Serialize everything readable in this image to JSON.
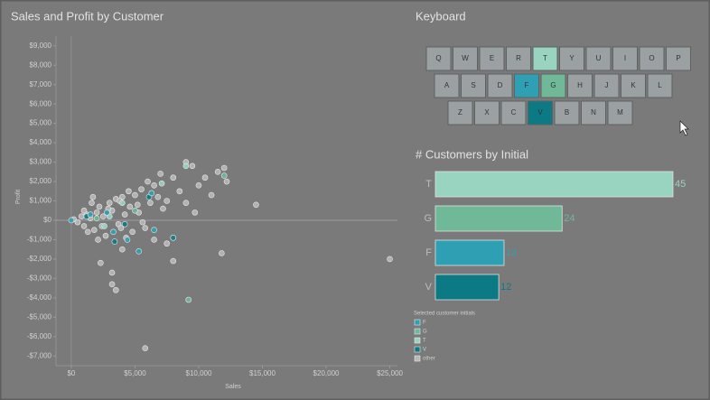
{
  "chart_data": [
    {
      "type": "scatter",
      "title": "Sales and Profit by Customer",
      "x_label": "Sales",
      "y_label": "Profit",
      "legend_title": "Selected customer initials",
      "xlim": [
        -1200,
        25600
      ],
      "ylim": [
        -7500,
        9500
      ],
      "xticks": [
        {
          "value": 0,
          "label": "$0"
        },
        {
          "value": 5000,
          "label": "$5,000"
        },
        {
          "value": 10000,
          "label": "$10,000"
        },
        {
          "value": 15000,
          "label": "$15,000"
        },
        {
          "value": 20000,
          "label": "$20,000"
        },
        {
          "value": 25000,
          "label": "$25,000"
        }
      ],
      "yticks": [
        {
          "value": 9000,
          "label": "$9,000"
        },
        {
          "value": 8000,
          "label": "$8,000"
        },
        {
          "value": 7000,
          "label": "$7,000"
        },
        {
          "value": 6000,
          "label": "$6,000"
        },
        {
          "value": 5000,
          "label": "$5,000"
        },
        {
          "value": 4000,
          "label": "$4,000"
        },
        {
          "value": 3000,
          "label": "$3,000"
        },
        {
          "value": 2000,
          "label": "$2,000"
        },
        {
          "value": 1000,
          "label": "$1,000"
        },
        {
          "value": 0,
          "label": "$0"
        },
        {
          "value": -1000,
          "label": "-$1,000"
        },
        {
          "value": -2000,
          "label": "-$2,000"
        },
        {
          "value": -3000,
          "label": "-$3,000"
        },
        {
          "value": -4000,
          "label": "-$4,000"
        },
        {
          "value": -5000,
          "label": "-$5,000"
        },
        {
          "value": -6000,
          "label": "-$6,000"
        },
        {
          "value": -7000,
          "label": "-$7,000"
        }
      ],
      "series": [
        {
          "name": "F",
          "color": "#2fa0b4",
          "x": [
            0,
            1500,
            2800,
            4400,
            5300,
            6500,
            3300,
            6300
          ],
          "values": [
            0,
            300,
            400,
            -1000,
            -1600,
            -500,
            -600,
            1400
          ]
        },
        {
          "name": "G",
          "color": "#6fb898",
          "x": [
            9200,
            12000,
            2000,
            5000
          ],
          "values": [
            -4100,
            2300,
            100,
            500
          ]
        },
        {
          "name": "T",
          "color": "#98d4c0",
          "x": [
            9000,
            4000,
            2600,
            7100,
            3000
          ],
          "values": [
            2800,
            900,
            -300,
            1900,
            200
          ]
        },
        {
          "name": "V",
          "color": "#0b7a85",
          "x": [
            6100,
            8000,
            1200,
            4200,
            3400
          ],
          "values": [
            1200,
            -900,
            200,
            -200,
            -1100
          ]
        },
        {
          "name": "other",
          "color": "#b8b8b8",
          "x": [
            200,
            500,
            800,
            1000,
            1200,
            1500,
            1800,
            2000,
            2200,
            2500,
            2700,
            3000,
            3200,
            3500,
            3700,
            4000,
            4200,
            4500,
            4800,
            5000,
            5200,
            5500,
            5800,
            6000,
            6500,
            7000,
            7500,
            8000,
            8500,
            9000,
            9500,
            10000,
            10500,
            11000,
            11500,
            12000,
            12200,
            8000,
            7500,
            8000,
            6500,
            3200,
            3500,
            2300,
            3200,
            5800,
            11800,
            14500,
            25000,
            9700,
            1300,
            1600,
            2400,
            2900,
            4300,
            5300,
            6200,
            6800,
            7200,
            9000,
            1000,
            1700,
            3800,
            4600,
            5600,
            2100,
            4000,
            3900
          ],
          "values": [
            50,
            -100,
            200,
            -300,
            300,
            100,
            -500,
            400,
            700,
            200,
            -800,
            900,
            500,
            1100,
            -200,
            1200,
            300,
            1500,
            -600,
            1300,
            800,
            1600,
            -400,
            2000,
            1800,
            2400,
            1000,
            2200,
            1500,
            900,
            2800,
            1800,
            2200,
            1300,
            2500,
            2700,
            2000,
            -900,
            -1200,
            -2100,
            -1000,
            -2700,
            -3600,
            -2200,
            -3300,
            -6600,
            -1700,
            800,
            -2000,
            400,
            -600,
            900,
            -300,
            600,
            -900,
            400,
            900,
            1200,
            600,
            3000,
            500,
            1200,
            1000,
            700,
            -100,
            -1000,
            -1500,
            -400
          ]
        }
      ]
    },
    {
      "type": "hbar",
      "title": "# Customers by Initial",
      "categories": [
        "T",
        "G",
        "F",
        "V"
      ],
      "values": [
        45,
        24,
        13,
        12
      ],
      "colors": [
        "#98d4c0",
        "#6fb898",
        "#2fa0b4",
        "#0b7a85"
      ],
      "xlim": [
        0,
        45
      ]
    }
  ],
  "keyboard": {
    "title": "Keyboard",
    "rows": [
      [
        "Q",
        "W",
        "E",
        "R",
        "T",
        "Y",
        "U",
        "I",
        "O",
        "P"
      ],
      [
        "A",
        "S",
        "D",
        "F",
        "G",
        "H",
        "J",
        "K",
        "L"
      ],
      [
        "Z",
        "X",
        "C",
        "V",
        "B",
        "N",
        "M"
      ]
    ]
  }
}
